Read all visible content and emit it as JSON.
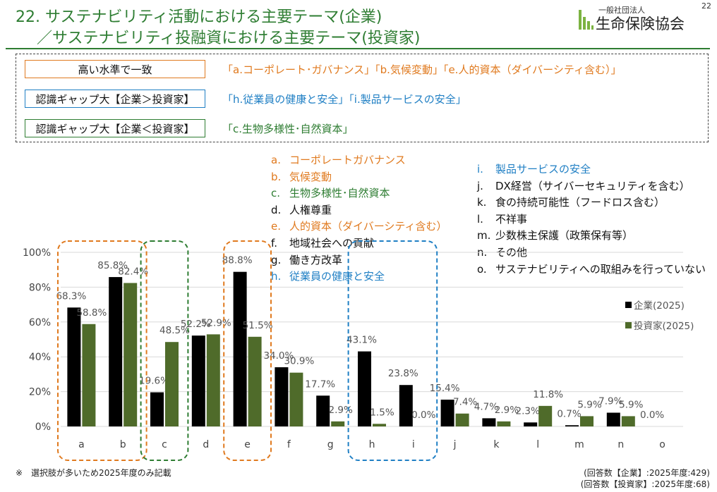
{
  "header": {
    "title_line1": "22. サステナビリティ活動における主要テーマ(企業)",
    "title_line2": "／サステナビリティ投融資における主要テーマ(投資家)",
    "logo_sub": "一般社団法人",
    "logo_main": "生命保険協会",
    "page_number": "22"
  },
  "summary": [
    {
      "label": "高い水準で一致",
      "text": "「a.コーポレート･ガバナンス」「b.気候変動」「e.人的資本（ダイバーシティ含む）」",
      "color": "#e07a1f"
    },
    {
      "label": "認識ギャップ大【企業＞投資家】",
      "text": "「h.従業員の健康と安全」「i.製品サービスの安全」",
      "color": "#1f7fc4"
    },
    {
      "label": "認識ギャップ大【企業＜投資家】",
      "text": "「c.生物多様性･自然資本」",
      "color": "#2e7d32"
    }
  ],
  "legend_left": [
    {
      "letter": "a.",
      "name": "コーポレートガバナンス",
      "color": "#e07a1f"
    },
    {
      "letter": "b.",
      "name": "気候変動",
      "color": "#e07a1f"
    },
    {
      "letter": "c.",
      "name": "生物多様性･自然資本",
      "color": "#2e7d32"
    },
    {
      "letter": "d.",
      "name": "人権尊重",
      "color": "#111111"
    },
    {
      "letter": "e.",
      "name": "人的資本（ダイバーシティ含む）",
      "color": "#e07a1f"
    },
    {
      "letter": "f.",
      "name": "地域社会への貢献",
      "color": "#111111"
    },
    {
      "letter": "g.",
      "name": "働き方改革",
      "color": "#111111"
    },
    {
      "letter": "h.",
      "name": "従業員の健康と安全",
      "color": "#1f7fc4"
    }
  ],
  "legend_right": [
    {
      "letter": "i.",
      "name": "製品サービスの安全",
      "color": "#1f7fc4"
    },
    {
      "letter": "j.",
      "name": "DX経営（サイバーセキュリティを含む）",
      "color": "#111111"
    },
    {
      "letter": "k.",
      "name": "食の持続可能性（フードロス含む）",
      "color": "#111111"
    },
    {
      "letter": "l.",
      "name": "不祥事",
      "color": "#111111"
    },
    {
      "letter": "m.",
      "name": "少数株主保護（政策保有等）",
      "color": "#111111"
    },
    {
      "letter": "n.",
      "name": "その他",
      "color": "#111111"
    },
    {
      "letter": "o.",
      "name": "サステナビリティへの取組みを行っていない",
      "color": "#111111"
    }
  ],
  "chart_data": {
    "type": "bar",
    "categories": [
      "a",
      "b",
      "c",
      "d",
      "e",
      "f",
      "g",
      "h",
      "i",
      "j",
      "k",
      "l",
      "m",
      "n",
      "o"
    ],
    "series": [
      {
        "name": "企業(2025)",
        "color": "#000000",
        "values": [
          68.3,
          85.8,
          19.6,
          52.2,
          88.8,
          34.0,
          17.7,
          43.1,
          23.8,
          15.4,
          4.7,
          2.3,
          0.7,
          7.9,
          0.0
        ],
        "labels": [
          "68.3%",
          "85.8%",
          "19.6%",
          "52.2%",
          "88.8%",
          "34.0%",
          "17.7%",
          "43.1%",
          "23.8%",
          "15.4%",
          "4.7%",
          "2.3%",
          "0.7%",
          "7.9%",
          "0.0%"
        ]
      },
      {
        "name": "投資家(2025)",
        "color": "#4f6b2a",
        "values": [
          58.8,
          82.4,
          48.5,
          52.9,
          51.5,
          30.9,
          2.9,
          1.5,
          0.0,
          7.4,
          2.9,
          11.8,
          5.9,
          5.9,
          null
        ],
        "labels": [
          "58.8%",
          "82.4%",
          "48.5%",
          "52.9%",
          "51.5%",
          "30.9%",
          "2.9%",
          "1.5%",
          "0.0%",
          "7.4%",
          "2.9%",
          "11.8%",
          "5.9%",
          "5.9%",
          ""
        ]
      }
    ],
    "yticks": [
      "0%",
      "20%",
      "40%",
      "60%",
      "80%",
      "100%"
    ],
    "ylim": [
      0,
      100
    ],
    "highlight_groups": [
      {
        "categories": [
          "a",
          "b"
        ],
        "color": "#e07a1f"
      },
      {
        "categories": [
          "c"
        ],
        "color": "#2e7d32"
      },
      {
        "categories": [
          "e"
        ],
        "color": "#e07a1f"
      },
      {
        "categories": [
          "h",
          "i"
        ],
        "color": "#1f7fc4"
      }
    ],
    "legend_position": "right"
  },
  "footer": {
    "note": "※　選択肢が多いため2025年度のみ記載",
    "resp_company": "(回答数【企業】:2025年度:429)",
    "resp_investor": "(回答数【投資家】:2025年度:68)"
  }
}
